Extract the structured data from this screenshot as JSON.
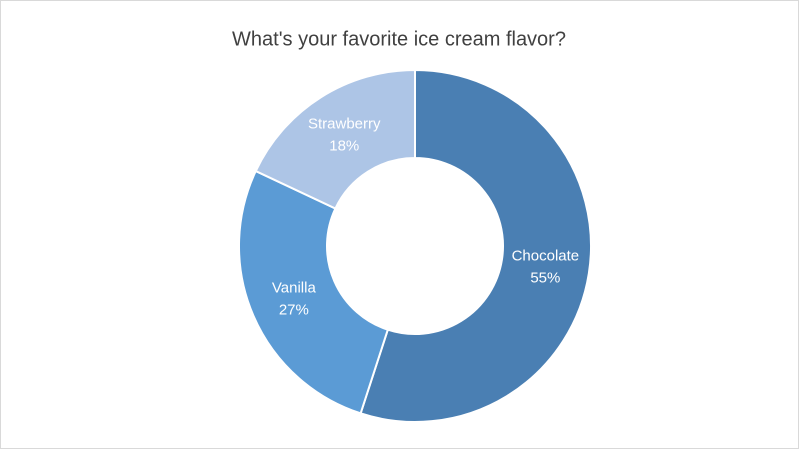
{
  "chart_data": {
    "type": "pie",
    "title": "What's your favorite ice cream flavor?",
    "categories": [
      "Chocolate",
      "Vanilla",
      "Strawberry"
    ],
    "values": [
      55,
      27,
      18
    ],
    "value_labels": [
      "55%",
      "27%",
      "18%"
    ],
    "colors": [
      "#4a7fb3",
      "#5b9bd5",
      "#adc5e6"
    ]
  }
}
